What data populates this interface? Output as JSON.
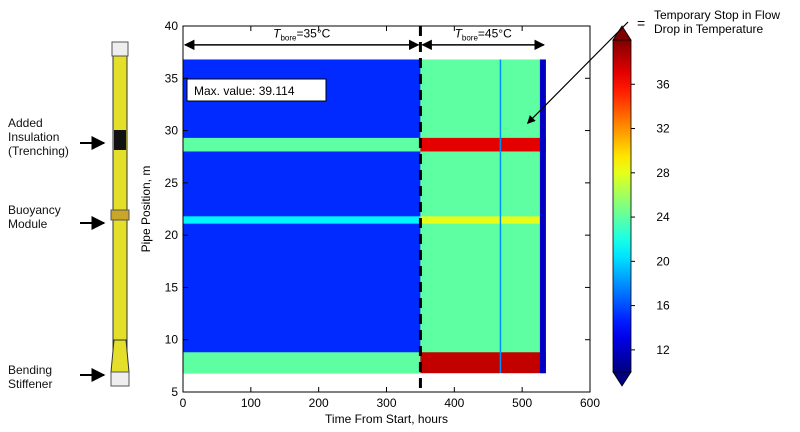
{
  "riser": {
    "labels": [
      {
        "id": "insulation",
        "lines": [
          "Added",
          "Insulation",
          "(Trenching)"
        ]
      },
      {
        "id": "buoyancy",
        "lines": [
          "Buoyancy",
          "Module"
        ]
      },
      {
        "id": "stiffener",
        "lines": [
          "Bending",
          "Stiffener"
        ]
      }
    ]
  },
  "chart_data": {
    "type": "heatmap",
    "xlabel": "Time From Start, hours",
    "ylabel": "Pipe Position, m",
    "xlim": [
      0,
      600
    ],
    "ylim": [
      5,
      40
    ],
    "xticks": [
      0,
      100,
      200,
      300,
      400,
      500,
      600
    ],
    "yticks": [
      5,
      10,
      15,
      20,
      25,
      30,
      35,
      40
    ],
    "data_extent": {
      "x": [
        0,
        535
      ],
      "y": [
        6.8,
        36.8
      ]
    },
    "phases": [
      {
        "x_range": [
          0,
          350
        ],
        "label_main": "T",
        "label_sub": "bore",
        "label_value": "=35°C",
        "base_value": 15
      },
      {
        "x_range": [
          350,
          535
        ],
        "label_main": "T",
        "label_sub": "bore",
        "label_value": "=45°C",
        "base_value": 24
      }
    ],
    "phase_boundary_x": 350,
    "bands": [
      {
        "name": "Added Insulation (Trenching)",
        "y_range": [
          28,
          29.3
        ],
        "value_phase1": 24,
        "value_phase2": 37
      },
      {
        "name": "Buoyancy Module",
        "y_range": [
          21.1,
          21.8
        ],
        "value_phase1": 21,
        "value_phase2": 28
      },
      {
        "name": "Bending Stiffener",
        "y_range": [
          6.8,
          8.8
        ],
        "value_phase1": 24,
        "value_phase2": 38
      }
    ],
    "flow_stop_x": 468,
    "annotation_box": "Max. value: 39.114",
    "arrow_annotation": {
      "text_lines": [
        "Temporary Stop in Flow",
        "Drop in Temperature"
      ],
      "points_to": {
        "x": 505,
        "y": 30.5
      }
    },
    "colorbar": {
      "min": 10,
      "max": 40,
      "ticks": [
        12,
        16,
        20,
        24,
        28,
        32,
        36
      ],
      "colormap": "jet"
    }
  }
}
